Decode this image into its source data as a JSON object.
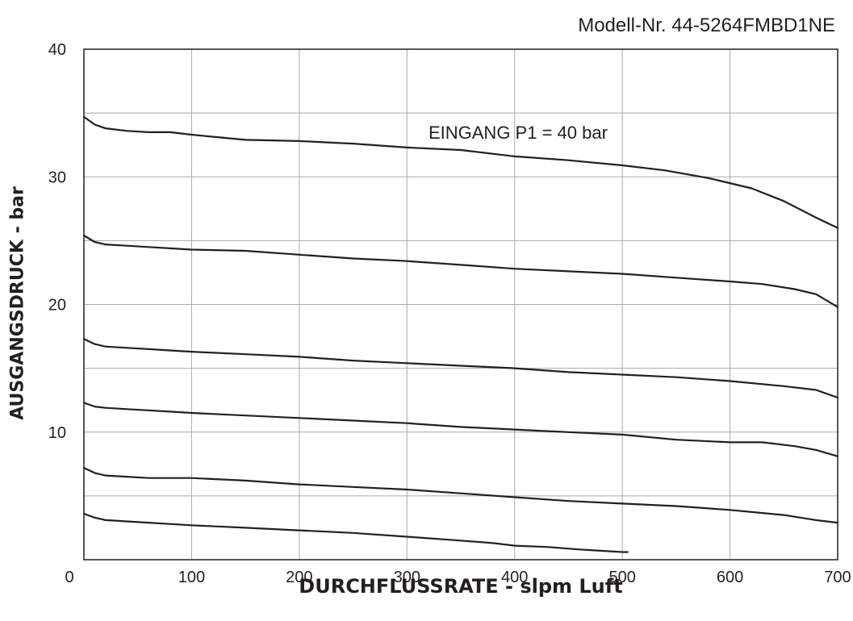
{
  "model_label": "Modell-Nr. 44-5264FMBD1NE",
  "chart_data": {
    "type": "line",
    "title": "",
    "xlabel": "DURCHFLUSSRATE - slpm Luft",
    "ylabel": "AUSGANGSDRUCK - bar",
    "xlim": [
      0,
      700
    ],
    "ylim": [
      0,
      40
    ],
    "xticks": [
      "0",
      "100",
      "200",
      "300",
      "400",
      "500",
      "600",
      "700"
    ],
    "yticks": [
      "10",
      "20",
      "30",
      "40"
    ],
    "grid": true,
    "annotation": {
      "text": "EINGANG P1 = 40 bar",
      "x": 320,
      "y": 33.5
    },
    "colors": {
      "line": "#231f20",
      "grid": "#a7a9ac",
      "axis": "#231f20"
    },
    "series": [
      {
        "x": [
          0,
          10,
          20,
          40,
          60,
          80,
          100,
          150,
          200,
          250,
          300,
          350,
          400,
          450,
          500,
          540,
          580,
          620,
          650,
          680,
          700
        ],
        "y": [
          34.7,
          34.1,
          33.8,
          33.6,
          33.5,
          33.5,
          33.3,
          32.9,
          32.8,
          32.6,
          32.3,
          32.1,
          31.6,
          31.3,
          30.9,
          30.5,
          29.9,
          29.1,
          28.1,
          26.8,
          26.0
        ]
      },
      {
        "x": [
          0,
          10,
          20,
          40,
          60,
          80,
          100,
          150,
          200,
          250,
          300,
          350,
          400,
          450,
          500,
          550,
          600,
          630,
          660,
          680,
          700
        ],
        "y": [
          25.4,
          24.9,
          24.7,
          24.6,
          24.5,
          24.4,
          24.3,
          24.2,
          23.9,
          23.6,
          23.4,
          23.1,
          22.8,
          22.6,
          22.4,
          22.1,
          21.8,
          21.6,
          21.2,
          20.8,
          19.8
        ]
      },
      {
        "x": [
          0,
          10,
          20,
          40,
          60,
          80,
          100,
          150,
          200,
          250,
          300,
          350,
          400,
          450,
          500,
          550,
          600,
          650,
          680,
          700
        ],
        "y": [
          17.3,
          16.9,
          16.7,
          16.6,
          16.5,
          16.4,
          16.3,
          16.1,
          15.9,
          15.6,
          15.4,
          15.2,
          15.0,
          14.7,
          14.5,
          14.3,
          14.0,
          13.6,
          13.3,
          12.7
        ]
      },
      {
        "x": [
          0,
          10,
          20,
          40,
          60,
          80,
          100,
          150,
          200,
          250,
          300,
          350,
          400,
          450,
          500,
          550,
          600,
          630,
          660,
          680,
          700
        ],
        "y": [
          12.3,
          12.0,
          11.9,
          11.8,
          11.7,
          11.6,
          11.5,
          11.3,
          11.1,
          10.9,
          10.7,
          10.4,
          10.2,
          10.0,
          9.8,
          9.4,
          9.2,
          9.2,
          8.9,
          8.6,
          8.1
        ]
      },
      {
        "x": [
          0,
          10,
          20,
          40,
          60,
          80,
          100,
          150,
          200,
          250,
          300,
          350,
          400,
          450,
          500,
          550,
          600,
          650,
          680,
          700
        ],
        "y": [
          7.2,
          6.8,
          6.6,
          6.5,
          6.4,
          6.4,
          6.4,
          6.2,
          5.9,
          5.7,
          5.5,
          5.2,
          4.9,
          4.6,
          4.4,
          4.2,
          3.9,
          3.5,
          3.1,
          2.9
        ]
      },
      {
        "x": [
          0,
          10,
          20,
          40,
          60,
          80,
          100,
          150,
          200,
          250,
          300,
          350,
          380,
          400,
          430,
          460,
          480,
          500,
          505
        ],
        "y": [
          3.6,
          3.3,
          3.1,
          3.0,
          2.9,
          2.8,
          2.7,
          2.5,
          2.3,
          2.1,
          1.8,
          1.5,
          1.3,
          1.1,
          1.0,
          0.8,
          0.7,
          0.6,
          0.6
        ]
      }
    ]
  }
}
